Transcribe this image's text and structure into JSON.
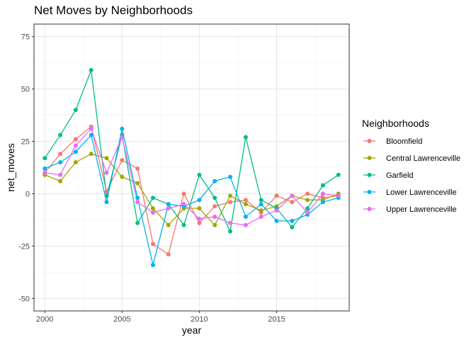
{
  "chart_data": {
    "type": "line",
    "title": "Net Moves by Neighborhoods",
    "xlabel": "year",
    "ylabel": "net_moves",
    "xlim": [
      1999.3,
      2019.7
    ],
    "ylim": [
      -56,
      81
    ],
    "x_ticks": [
      2000,
      2005,
      2010,
      2015
    ],
    "x_tick_labels": [
      "2000",
      "2005",
      "2010",
      "2015"
    ],
    "y_ticks": [
      -50,
      -25,
      0,
      25,
      50,
      75
    ],
    "y_tick_labels": [
      "-50",
      "-25",
      "0",
      "25",
      "50",
      "75"
    ],
    "grid": true,
    "legend_title": "Neighborhoods",
    "legend_position": "right",
    "x": [
      2000,
      2001,
      2002,
      2003,
      2004,
      2005,
      2006,
      2007,
      2008,
      2009,
      2010,
      2011,
      2012,
      2013,
      2014,
      2015,
      2016,
      2017,
      2018,
      2019
    ],
    "series": [
      {
        "name": "Bloomfield",
        "color": "#F8766D",
        "values": [
          10,
          19,
          26,
          32,
          1,
          16,
          12,
          -24,
          -29,
          0,
          -14,
          -6,
          -4,
          -3,
          -9,
          -1,
          -4,
          0,
          -2,
          -1
        ]
      },
      {
        "name": "Central Lawrenceville",
        "color": "#A3A500",
        "values": [
          9,
          6,
          15,
          19,
          17,
          8,
          5,
          -7,
          -15,
          -7,
          -7,
          -15,
          -1,
          -5,
          -8,
          -6,
          -1,
          -3,
          -3,
          0
        ]
      },
      {
        "name": "Garfield",
        "color": "#00BF7D",
        "values": [
          17,
          28,
          40,
          59,
          -1,
          28,
          -14,
          -2,
          -5,
          -15,
          9,
          -2,
          -18,
          27,
          -3,
          -7,
          -16,
          -7,
          4,
          9
        ]
      },
      {
        "name": "Lower Lawrenceville",
        "color": "#00B0F6",
        "values": [
          12,
          15,
          20,
          28,
          -4,
          31,
          -2,
          -34,
          -5,
          -6,
          -3,
          6,
          8,
          -11,
          -5,
          -13,
          -13,
          -10,
          -4,
          -2
        ]
      },
      {
        "name": "Upper Lawrenceville",
        "color": "#E76BF3",
        "values": [
          10,
          9,
          23,
          31,
          10,
          27,
          -4,
          -9,
          -7,
          -5,
          -12,
          -11,
          -14,
          -15,
          -11,
          -8,
          -1,
          -9,
          0,
          -1
        ]
      }
    ]
  }
}
